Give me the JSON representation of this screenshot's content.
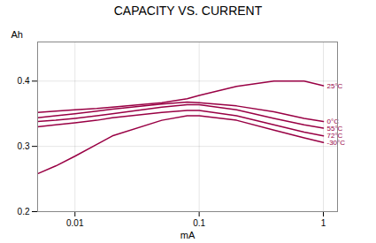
{
  "chart_data": {
    "type": "line",
    "title": "CAPACITY  VS. CURRENT",
    "xlabel": "mA",
    "ylabel": "Ah",
    "log": "x",
    "grid": true,
    "x": [
      0.005,
      0.007,
      0.01,
      0.015,
      0.02,
      0.05,
      0.08,
      0.1,
      0.2,
      0.4,
      0.7,
      1.0
    ],
    "series": [
      {
        "name": "25°C",
        "color": "#990044",
        "values": [
          0.352,
          0.354,
          0.356,
          0.358,
          0.36,
          0.367,
          0.373,
          0.378,
          0.392,
          0.4,
          0.4,
          0.393
        ]
      },
      {
        "name": "0°C",
        "color": "#990044",
        "values": [
          0.344,
          0.347,
          0.35,
          0.354,
          0.357,
          0.365,
          0.368,
          0.367,
          0.362,
          0.353,
          0.343,
          0.338
        ]
      },
      {
        "name": "55°C",
        "color": "#990044",
        "values": [
          0.338,
          0.34,
          0.343,
          0.347,
          0.35,
          0.36,
          0.364,
          0.364,
          0.356,
          0.343,
          0.333,
          0.328
        ]
      },
      {
        "name": "72°C",
        "color": "#990044",
        "values": [
          0.33,
          0.333,
          0.336,
          0.34,
          0.344,
          0.352,
          0.355,
          0.355,
          0.347,
          0.333,
          0.322,
          0.316
        ]
      },
      {
        "name": "-30°C",
        "color": "#990044",
        "values": [
          0.258,
          0.27,
          0.285,
          0.303,
          0.316,
          0.34,
          0.347,
          0.347,
          0.34,
          0.325,
          0.313,
          0.306
        ]
      }
    ],
    "xlim": [
      0.005,
      1.3
    ],
    "xticks": [
      0.01,
      0.1,
      1
    ],
    "ylim": [
      0.2,
      0.46
    ],
    "yticks": [
      0.2,
      0.3,
      0.4
    ]
  }
}
